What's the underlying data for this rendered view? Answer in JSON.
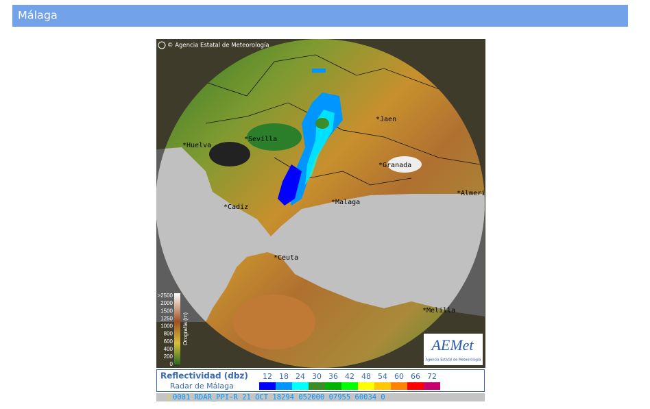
{
  "header": {
    "title": "Málaga"
  },
  "map": {
    "copyright": "© Agencia Estatal de Meteorología",
    "cities": [
      "*Jaen",
      "*Sevilla",
      "*Huelva",
      "*Granada",
      "*Malaga",
      "*Cadiz",
      "*Ceuta",
      "*Melilla",
      "*Almeria"
    ]
  },
  "orography": {
    "title": "Orografía (m)",
    "labels": [
      ">2500",
      "2000",
      "1500",
      "1250",
      "1000",
      "800",
      "600",
      "400",
      "200",
      "0"
    ]
  },
  "logo": {
    "name": "AEMet",
    "subtitle": "Agencia Estatal de Meteorología"
  },
  "legend": {
    "title": "Reflectividad (dbz)",
    "subtitle": "Radar de Málaga",
    "levels": [
      12,
      18,
      24,
      30,
      36,
      42,
      48,
      54,
      60,
      66,
      72
    ],
    "colors": [
      "#0000ff",
      "#0096ff",
      "#00ffff",
      "#3c8c28",
      "#00b400",
      "#00ff00",
      "#ffff00",
      "#ffc800",
      "#ff8200",
      "#ff0000",
      "#c8006e"
    ]
  },
  "footer": {
    "prefix": "1",
    "text": "0001 RDAR_PPI-R   21 OCT 18294 052000 07955 60034 0"
  }
}
